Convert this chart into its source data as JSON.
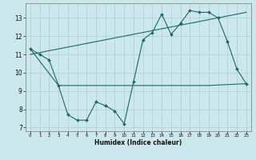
{
  "xlabel": "Humidex (Indice chaleur)",
  "bg_color": "#cce8ec",
  "grid_color": "#aacfd4",
  "line_color": "#1a6b60",
  "xlim": [
    -0.5,
    23.5
  ],
  "ylim": [
    6.8,
    13.8
  ],
  "yticks": [
    7,
    8,
    9,
    10,
    11,
    12,
    13
  ],
  "xticks": [
    0,
    1,
    2,
    3,
    4,
    5,
    6,
    7,
    8,
    9,
    10,
    11,
    12,
    13,
    14,
    15,
    16,
    17,
    18,
    19,
    20,
    21,
    22,
    23
  ],
  "line1_x": [
    0,
    1,
    2,
    3,
    4,
    5,
    6,
    7,
    8,
    9,
    10,
    11,
    12,
    13,
    14,
    15,
    16,
    17,
    18,
    19,
    20,
    21,
    22,
    23
  ],
  "line1_y": [
    11.3,
    11.0,
    10.7,
    9.3,
    7.7,
    7.4,
    7.4,
    8.4,
    8.2,
    7.9,
    7.2,
    9.5,
    11.8,
    12.2,
    13.2,
    12.1,
    12.7,
    13.4,
    13.3,
    13.3,
    13.0,
    11.7,
    10.2,
    9.4
  ],
  "line2_x": [
    0,
    3,
    10,
    19,
    23
  ],
  "line2_y": [
    11.3,
    9.3,
    9.3,
    9.3,
    9.4
  ],
  "line3_x": [
    0,
    23
  ],
  "line3_y": [
    11.0,
    13.3
  ]
}
